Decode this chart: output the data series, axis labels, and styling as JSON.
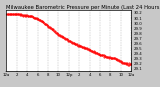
{
  "title": "Milwaukee Barometric Pressure per Minute (Last 24 Hours)",
  "background_color": "#ffffff",
  "outer_bg": "#c8c8c8",
  "line_color": "#ff0000",
  "grid_color": "#888888",
  "y_min": 29.05,
  "y_max": 30.25,
  "num_points": 200,
  "title_fontsize": 3.8,
  "tick_fontsize": 2.8,
  "num_vticks": 13,
  "y_ticks": [
    29.1,
    29.2,
    29.3,
    29.4,
    29.5,
    29.6,
    29.7,
    29.8,
    29.9,
    30.0,
    30.1,
    30.2
  ],
  "x_labels": [
    "12a",
    "2",
    "4",
    "6",
    "8",
    "10",
    "12p",
    "2",
    "4",
    "6",
    "8",
    "10",
    "12a"
  ]
}
